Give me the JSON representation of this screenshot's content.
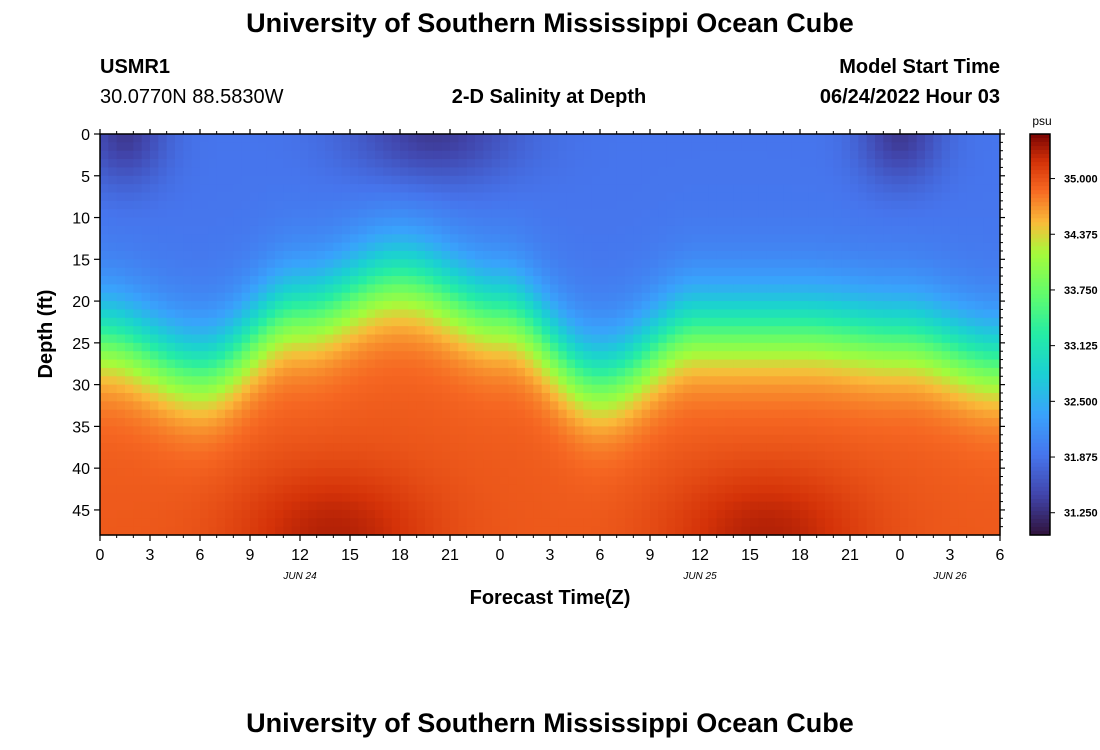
{
  "header": {
    "title": "University of Southern Mississippi Ocean Cube",
    "station_id": "USMR1",
    "coordinates": "30.0770N  88.5830W",
    "subtitle": "2-D Salinity at Depth",
    "model_start_label": "Model Start Time",
    "model_start_value": "06/24/2022 Hour 03"
  },
  "footer": {
    "title": "University of Southern Mississippi Ocean Cube"
  },
  "chart_data": {
    "type": "heatmap",
    "title": "2-D Salinity at Depth",
    "xlabel": "Forecast Time(Z)",
    "ylabel": "Depth (ft)",
    "x_ticks": [
      "0",
      "3",
      "6",
      "9",
      "12",
      "15",
      "18",
      "21",
      "0",
      "3",
      "6",
      "9",
      "12",
      "15",
      "18",
      "21",
      "0",
      "3",
      "6"
    ],
    "x_range_hours": [
      0,
      54
    ],
    "date_labels": [
      {
        "text": "JUN 24",
        "hour": 12
      },
      {
        "text": "JUN 25",
        "hour": 36
      },
      {
        "text": "JUN 26",
        "hour": 51
      }
    ],
    "y_ticks": [
      "0",
      "5",
      "10",
      "15",
      "20",
      "25",
      "30",
      "35",
      "40",
      "45"
    ],
    "y_range_ft": [
      0,
      48
    ],
    "colorbar": {
      "unit": "psu",
      "min": 31.0,
      "max": 35.5,
      "tick_labels": [
        "31.250",
        "31.875",
        "32.500",
        "33.125",
        "33.750",
        "34.375",
        "35.000"
      ],
      "tick_values": [
        31.25,
        31.875,
        32.5,
        33.125,
        33.75,
        34.375,
        35.0
      ]
    },
    "halocline_depth_ft_by_hour": {
      "hours": [
        0,
        6,
        12,
        18,
        24,
        30,
        36,
        42,
        48,
        54
      ],
      "depth_ft": [
        24,
        28,
        21,
        17,
        21,
        29,
        23,
        23,
        24,
        27
      ]
    },
    "surface_low_salinity_hours": [
      1.5,
      20,
      48
    ],
    "deep_max_salinity_hours": [
      14,
      40
    ]
  }
}
